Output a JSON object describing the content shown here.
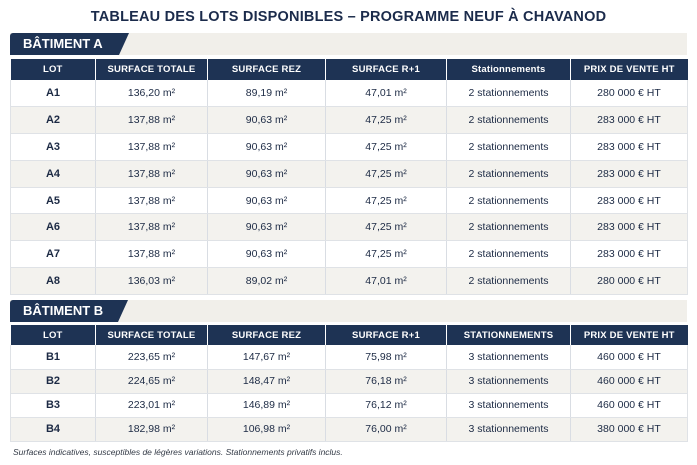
{
  "title": "TABLEAU DES LOTS DISPONIBLES – PROGRAMME NEUF À CHAVANOD",
  "columns": [
    "LOT",
    "SURFACE TOTALE",
    "SURFACE REZ",
    "SURFACE R+1",
    "Stationnements",
    "PRIX DE VENTE HT"
  ],
  "columns_b": [
    "LOT",
    "SURFACE TOTALE",
    "SURFACE REZ",
    "SURFACE R+1",
    "STATIONNEMENTS",
    "PRIX DE VENTE HT"
  ],
  "buildings": [
    {
      "name": "BÂTIMENT A",
      "rows": [
        [
          "A1",
          "136,20 m²",
          "89,19 m²",
          "47,01 m²",
          "2 stationnements",
          "280 000 € HT"
        ],
        [
          "A2",
          "137,88 m²",
          "90,63 m²",
          "47,25 m²",
          "2 stationnements",
          "283 000 € HT"
        ],
        [
          "A3",
          "137,88 m²",
          "90,63 m²",
          "47,25 m²",
          "2 stationnements",
          "283 000 € HT"
        ],
        [
          "A4",
          "137,88 m²",
          "90,63 m²",
          "47,25 m²",
          "2 stationnements",
          "283 000 € HT"
        ],
        [
          "A5",
          "137,88 m²",
          "90,63 m²",
          "47,25 m²",
          "2 stationnements",
          "283 000 € HT"
        ],
        [
          "A6",
          "137,88 m²",
          "90,63 m²",
          "47,25 m²",
          "2 stationnements",
          "283 000 € HT"
        ],
        [
          "A7",
          "137,88 m²",
          "90,63 m²",
          "47,25 m²",
          "2 stationnements",
          "283 000 € HT"
        ],
        [
          "A8",
          "136,03 m²",
          "89,02 m²",
          "47,01 m²",
          "2 stationnements",
          "280 000 € HT"
        ]
      ]
    },
    {
      "name": "BÂTIMENT B",
      "rows": [
        [
          "B1",
          "223,65 m²",
          "147,67 m²",
          "75,98 m²",
          "3 stationnements",
          "460 000 € HT"
        ],
        [
          "B2",
          "224,65 m²",
          "148,47 m²",
          "76,18 m²",
          "3 stationnements",
          "460 000 € HT"
        ],
        [
          "B3",
          "223,01 m²",
          "146,89 m²",
          "76,12 m²",
          "3 stationnements",
          "460 000 € HT"
        ],
        [
          "B4",
          "182,98 m²",
          "106,98 m²",
          "76,00 m²",
          "3 stationnements",
          "380 000 € HT"
        ]
      ]
    }
  ],
  "footnote": "Surfaces indicatives, susceptibles de légères variations. Stationnements privatifs inclus."
}
